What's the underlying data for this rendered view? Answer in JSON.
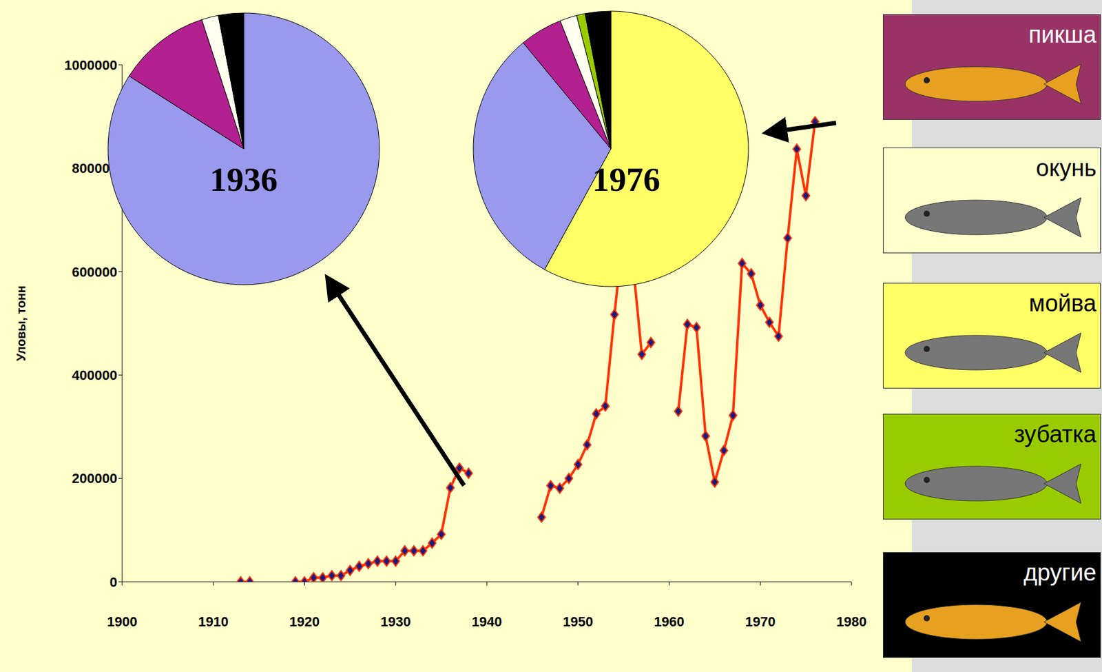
{
  "chart_data": [
    {
      "type": "line",
      "y_label": "Уловы, тонн",
      "color": "#FF3300",
      "marker": "diamond",
      "x": [
        1913,
        1914,
        1915,
        1916,
        1917,
        1918,
        1919,
        1920,
        1921,
        1922,
        1923,
        1924,
        1925,
        1926,
        1927,
        1928,
        1929,
        1930,
        1931,
        1932,
        1933,
        1934,
        1935,
        1936,
        1937,
        1938,
        1939,
        1940,
        1941,
        1942,
        1943,
        1944,
        1945,
        1946,
        1947,
        1948,
        1949,
        1950,
        1951,
        1952,
        1953,
        1954,
        1955,
        1956,
        1957,
        1958,
        1959,
        1960,
        1961,
        1962,
        1963,
        1964,
        1965,
        1966,
        1967,
        1968,
        1969,
        1970,
        1971,
        1972,
        1973,
        1974,
        1975,
        1976
      ],
      "values": [
        0,
        0,
        null,
        null,
        null,
        null,
        0,
        0,
        8000,
        8000,
        12000,
        12000,
        22000,
        30000,
        35000,
        40000,
        40000,
        40000,
        60000,
        60000,
        60000,
        75000,
        92000,
        182000,
        220000,
        210000,
        null,
        null,
        null,
        null,
        null,
        null,
        null,
        125000,
        186000,
        181000,
        200000,
        227000,
        265000,
        325000,
        340000,
        517000,
        680000,
        620000,
        440000,
        463000,
        null,
        null,
        330000,
        498000,
        492000,
        282000,
        193000,
        254000,
        322000,
        616000,
        596000,
        535000,
        502000,
        475000,
        665000,
        837000,
        747000,
        890000
      ],
      "xlim": [
        1900,
        1980
      ],
      "xticks": [
        1900,
        1910,
        1920,
        1930,
        1940,
        1950,
        1960,
        1970,
        1980
      ],
      "ylim": [
        0,
        1000000
      ],
      "yticks": [
        0,
        200000,
        400000,
        600000,
        800000,
        1000000
      ]
    },
    {
      "type": "pie",
      "title": "1936",
      "categories": [
        null,
        "пикша",
        "окунь",
        "другие"
      ],
      "values": [
        84,
        11,
        2,
        3
      ],
      "colors": [
        "#9999EE",
        "#B3208F",
        "#FFFFF0",
        "#000000"
      ]
    },
    {
      "type": "pie",
      "title": "1976",
      "categories": [
        "мойва",
        null,
        "пикша",
        "окунь",
        "зубатка",
        "другие"
      ],
      "values": [
        58,
        31,
        5,
        2,
        1,
        3
      ],
      "colors": [
        "#FFFF66",
        "#9999EE",
        "#B3208F",
        "#FFFFF0",
        "#99CC00",
        "#000000"
      ]
    }
  ],
  "species_legend": [
    {
      "name": "пикша",
      "color": "#993366"
    },
    {
      "name": "окунь",
      "color": "#FFFFCC"
    },
    {
      "name": "мойва",
      "color": "#FFFF66"
    },
    {
      "name": "зубатка",
      "color": "#99CC00"
    },
    {
      "name": "другие",
      "color": "#000000"
    }
  ]
}
